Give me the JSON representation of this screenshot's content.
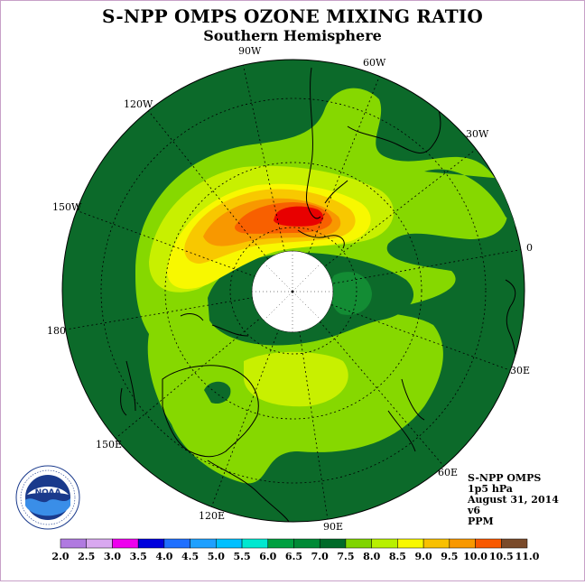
{
  "title": "S-NPP OMPS OZONE MIXING RATIO",
  "subtitle": "Southern Hemisphere",
  "longitude_labels": [
    "90W",
    "60W",
    "120W",
    "30W",
    "150W",
    "0",
    "180",
    "30E",
    "150E",
    "60E",
    "120E",
    "90E"
  ],
  "info": {
    "instrument": "S-NPP OMPS",
    "level": "1p5 hPa",
    "date": "August 31, 2014",
    "version": "v6",
    "units": "PPM"
  },
  "logo": {
    "text": "NOAA",
    "ring_text": "NATIONAL OCEANIC AND ATMOSPHERIC ADMINISTRATION · U.S. DEPARTMENT OF COMMERCE"
  },
  "legend": {
    "ticks": [
      "2.0",
      "2.5",
      "3.0",
      "3.5",
      "4.0",
      "4.5",
      "5.0",
      "5.5",
      "6.0",
      "6.5",
      "7.0",
      "7.5",
      "8.0",
      "8.5",
      "9.0",
      "9.5",
      "10.0",
      "10.5",
      "11.0"
    ],
    "colors": [
      "#b07ae0",
      "#d9a8f0",
      "#ee00ee",
      "#0000dd",
      "#1f6fff",
      "#1ea0ff",
      "#00c0ff",
      "#00e8d0",
      "#00a040",
      "#008a35",
      "#006a28",
      "#80d400",
      "#b8f000",
      "#f8f800",
      "#f8c000",
      "#f89800",
      "#f85800",
      "#e80000",
      "#7a4a2a"
    ]
  },
  "map_colors": {
    "base": "#0c6a2a",
    "green_mid": "#138c34",
    "lime": "#86d800",
    "yellowgreen": "#c8f000",
    "yellow": "#f8f800",
    "gold": "#f8c800",
    "orange": "#f89800",
    "darkorange": "#f86000",
    "red": "#e80000"
  }
}
